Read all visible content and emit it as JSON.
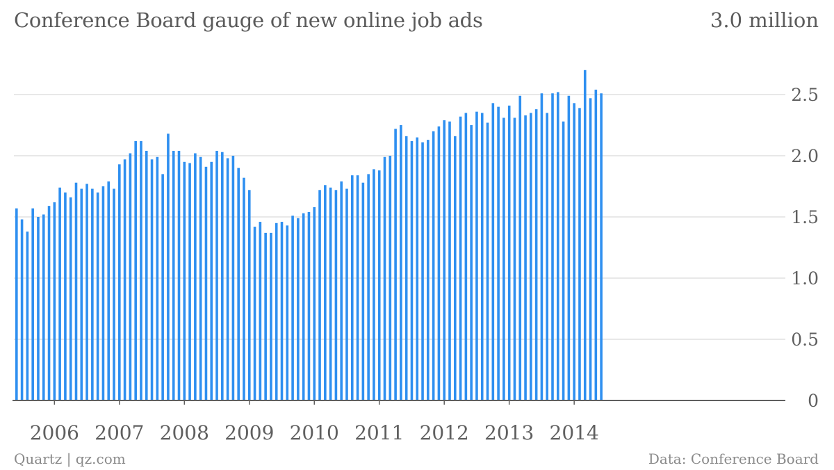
{
  "header": {
    "title": "Conference Board gauge of new online job ads",
    "unit": "3.0 million"
  },
  "footer": {
    "credit": "Quartz | qz.com",
    "source": "Data: Conference Board"
  },
  "colors": {
    "bar": "#2e8ff0",
    "grid": "#e0e0e0",
    "axis": "#5f5f5f"
  },
  "chart_data": {
    "type": "bar",
    "title": "Conference Board gauge of new online job ads",
    "ylabel": "3.0 million",
    "ylim": [
      0,
      3.0
    ],
    "yticks": [
      0,
      0.5,
      1.0,
      1.5,
      2.0,
      2.5
    ],
    "ytick_labels": [
      "0",
      "0.5",
      "1.0",
      "1.5",
      "2.0",
      "2.5"
    ],
    "xtick_labels": [
      "2006",
      "2007",
      "2008",
      "2009",
      "2010",
      "2011",
      "2012",
      "2013",
      "2014"
    ],
    "x_start": "2005-06",
    "x_end": "2014-05",
    "grid": true,
    "values": [
      1.57,
      1.48,
      1.38,
      1.57,
      1.5,
      1.52,
      1.59,
      1.62,
      1.74,
      1.7,
      1.66,
      1.78,
      1.73,
      1.77,
      1.73,
      1.7,
      1.75,
      1.79,
      1.73,
      1.93,
      1.97,
      2.02,
      2.12,
      2.12,
      2.04,
      1.97,
      1.99,
      1.85,
      2.18,
      2.04,
      2.04,
      1.95,
      1.94,
      2.02,
      1.99,
      1.91,
      1.95,
      2.04,
      2.03,
      1.98,
      2.0,
      1.9,
      1.82,
      1.72,
      1.42,
      1.46,
      1.37,
      1.37,
      1.45,
      1.46,
      1.43,
      1.51,
      1.49,
      1.53,
      1.54,
      1.58,
      1.72,
      1.76,
      1.74,
      1.72,
      1.79,
      1.73,
      1.84,
      1.84,
      1.78,
      1.85,
      1.89,
      1.88,
      1.99,
      2.0,
      2.22,
      2.25,
      2.16,
      2.12,
      2.15,
      2.11,
      2.13,
      2.2,
      2.24,
      2.29,
      2.28,
      2.16,
      2.32,
      2.35,
      2.25,
      2.36,
      2.35,
      2.27,
      2.43,
      2.4,
      2.31,
      2.41,
      2.31,
      2.49,
      2.33,
      2.35,
      2.38,
      2.51,
      2.35,
      2.51,
      2.52,
      2.28,
      2.49,
      2.43,
      2.39,
      2.7,
      2.47,
      2.54,
      2.51
    ]
  }
}
